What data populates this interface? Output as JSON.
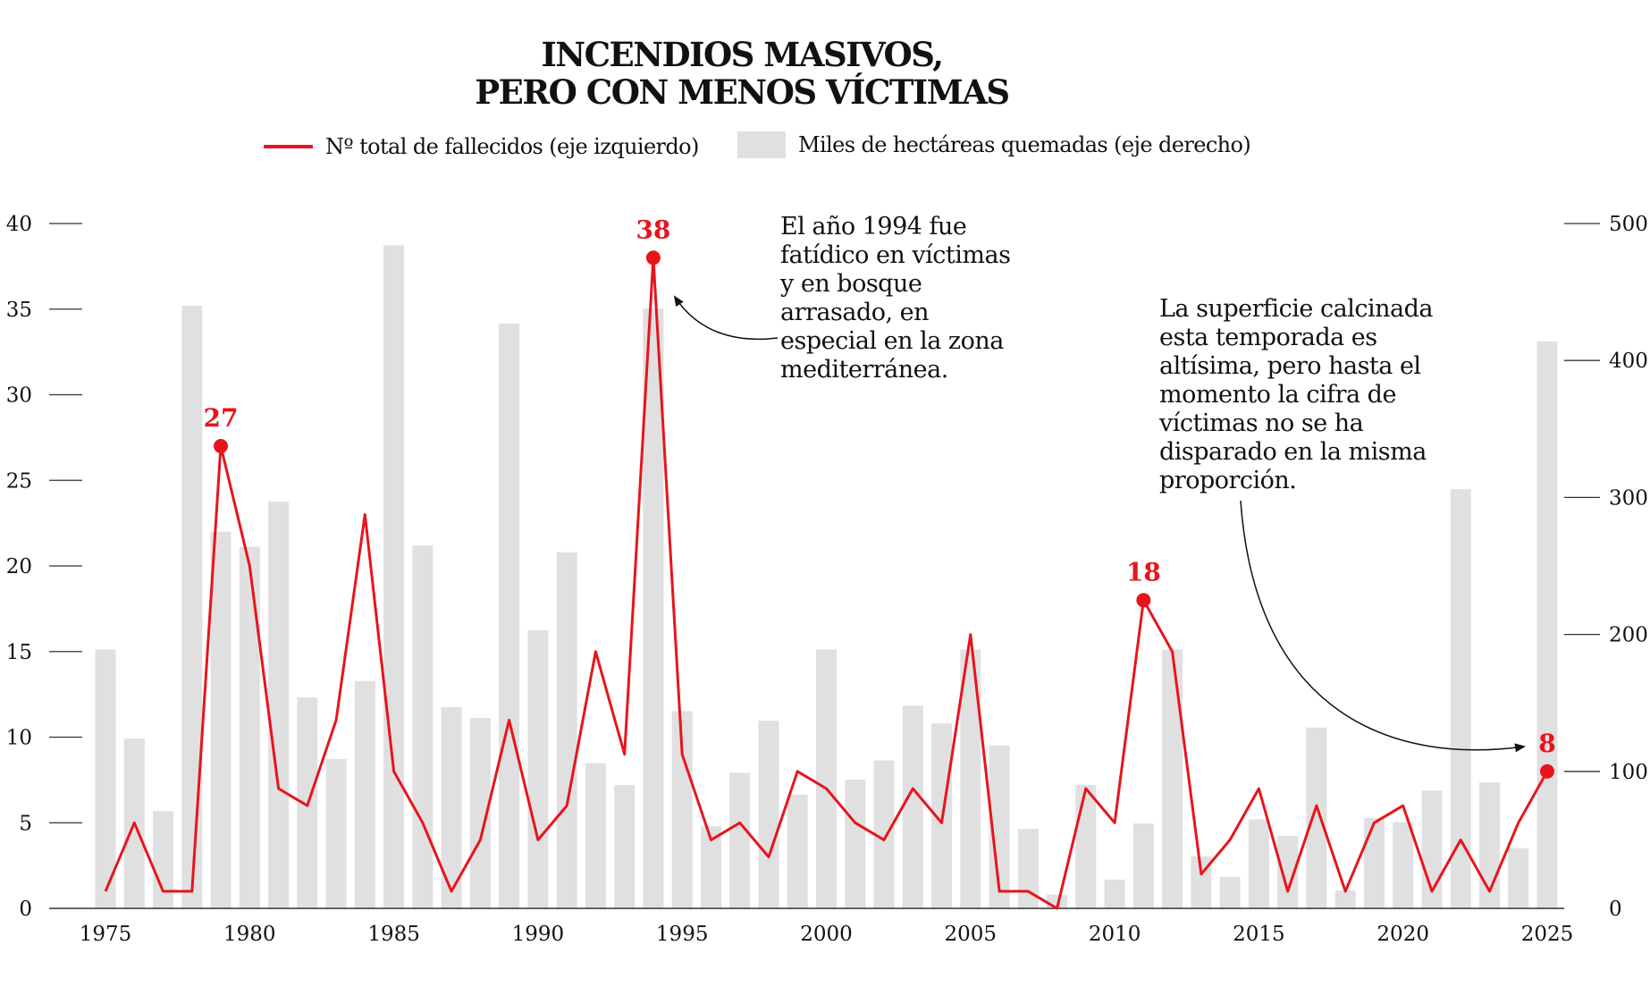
{
  "title_lines": [
    "INCENDIOS MASIVOS,",
    "PERO CON MENOS VÍCTIMAS"
  ],
  "legend": {
    "line_label": "Nº total de fallecidos (eje izquierdo)",
    "bar_label": "Miles de hectáreas quemadas (eje derecho)"
  },
  "annotations": [
    {
      "lines": [
        "El año 1994 fue",
        "fatídico en víctimas",
        "y en bosque",
        "arrasado, en",
        "especial en la zona",
        "mediterránea."
      ]
    },
    {
      "lines": [
        "La superficie calcinada",
        "esta temporada es",
        "altísima, pero hasta el",
        "momento la cifra de",
        "víctimas no se ha",
        "disparado en la misma",
        "proporción."
      ]
    }
  ],
  "chart_data": {
    "type": "bar+line",
    "x": [
      1975,
      1976,
      1977,
      1978,
      1979,
      1980,
      1981,
      1982,
      1983,
      1984,
      1985,
      1986,
      1987,
      1988,
      1989,
      1990,
      1991,
      1992,
      1993,
      1994,
      1995,
      1996,
      1997,
      1998,
      1999,
      2000,
      2001,
      2002,
      2003,
      2004,
      2005,
      2006,
      2007,
      2008,
      2009,
      2010,
      2011,
      2012,
      2013,
      2014,
      2015,
      2016,
      2017,
      2018,
      2019,
      2020,
      2021,
      2022,
      2023,
      2024,
      2025
    ],
    "x_ticks": [
      "1975",
      "1980",
      "1985",
      "1990",
      "1995",
      "2000",
      "2005",
      "2010",
      "2015",
      "2020",
      "2025"
    ],
    "y_left_ticks": [
      "0",
      "5",
      "10",
      "15",
      "20",
      "25",
      "30",
      "35",
      "40"
    ],
    "y_left_lim": [
      0,
      40
    ],
    "y_right_ticks": [
      "0",
      "100",
      "200",
      "300",
      "400",
      "500"
    ],
    "y_right_lim": [
      0,
      500
    ],
    "grid": false,
    "legend_position": "top",
    "series": [
      {
        "name": "Nº total de fallecidos (eje izquierdo)",
        "axis": "left",
        "kind": "line",
        "color": "#e8141b",
        "values": [
          1,
          5,
          1,
          1,
          27,
          20,
          7,
          6,
          11,
          23,
          8,
          5,
          1,
          4,
          11,
          4,
          6,
          15,
          9,
          38,
          9,
          4,
          5,
          3,
          8,
          7,
          5,
          4,
          7,
          5,
          16,
          1,
          1,
          0,
          7,
          5,
          18,
          15,
          2,
          4,
          7,
          1,
          6,
          1,
          5,
          6,
          1,
          4,
          1,
          5,
          8
        ]
      },
      {
        "name": "Miles de hectáreas quemadas (eje derecho)",
        "axis": "right",
        "kind": "bar",
        "color": "#e0e0e0",
        "values": [
          189,
          124,
          71,
          440,
          275,
          264,
          297,
          154,
          109,
          166,
          484,
          265,
          147,
          139,
          427,
          203,
          260,
          106,
          90,
          438,
          144,
          60,
          99,
          137,
          83,
          189,
          94,
          108,
          148,
          135,
          189,
          119,
          58,
          10,
          90,
          21,
          62,
          189,
          38,
          23,
          65,
          53,
          132,
          13,
          66,
          63,
          86,
          306,
          92,
          44,
          414
        ]
      }
    ],
    "highlighted_points": [
      {
        "x": 1979,
        "label": "27"
      },
      {
        "x": 1994,
        "label": "38"
      },
      {
        "x": 2011,
        "label": "18"
      },
      {
        "x": 2025,
        "label": "8"
      }
    ]
  }
}
